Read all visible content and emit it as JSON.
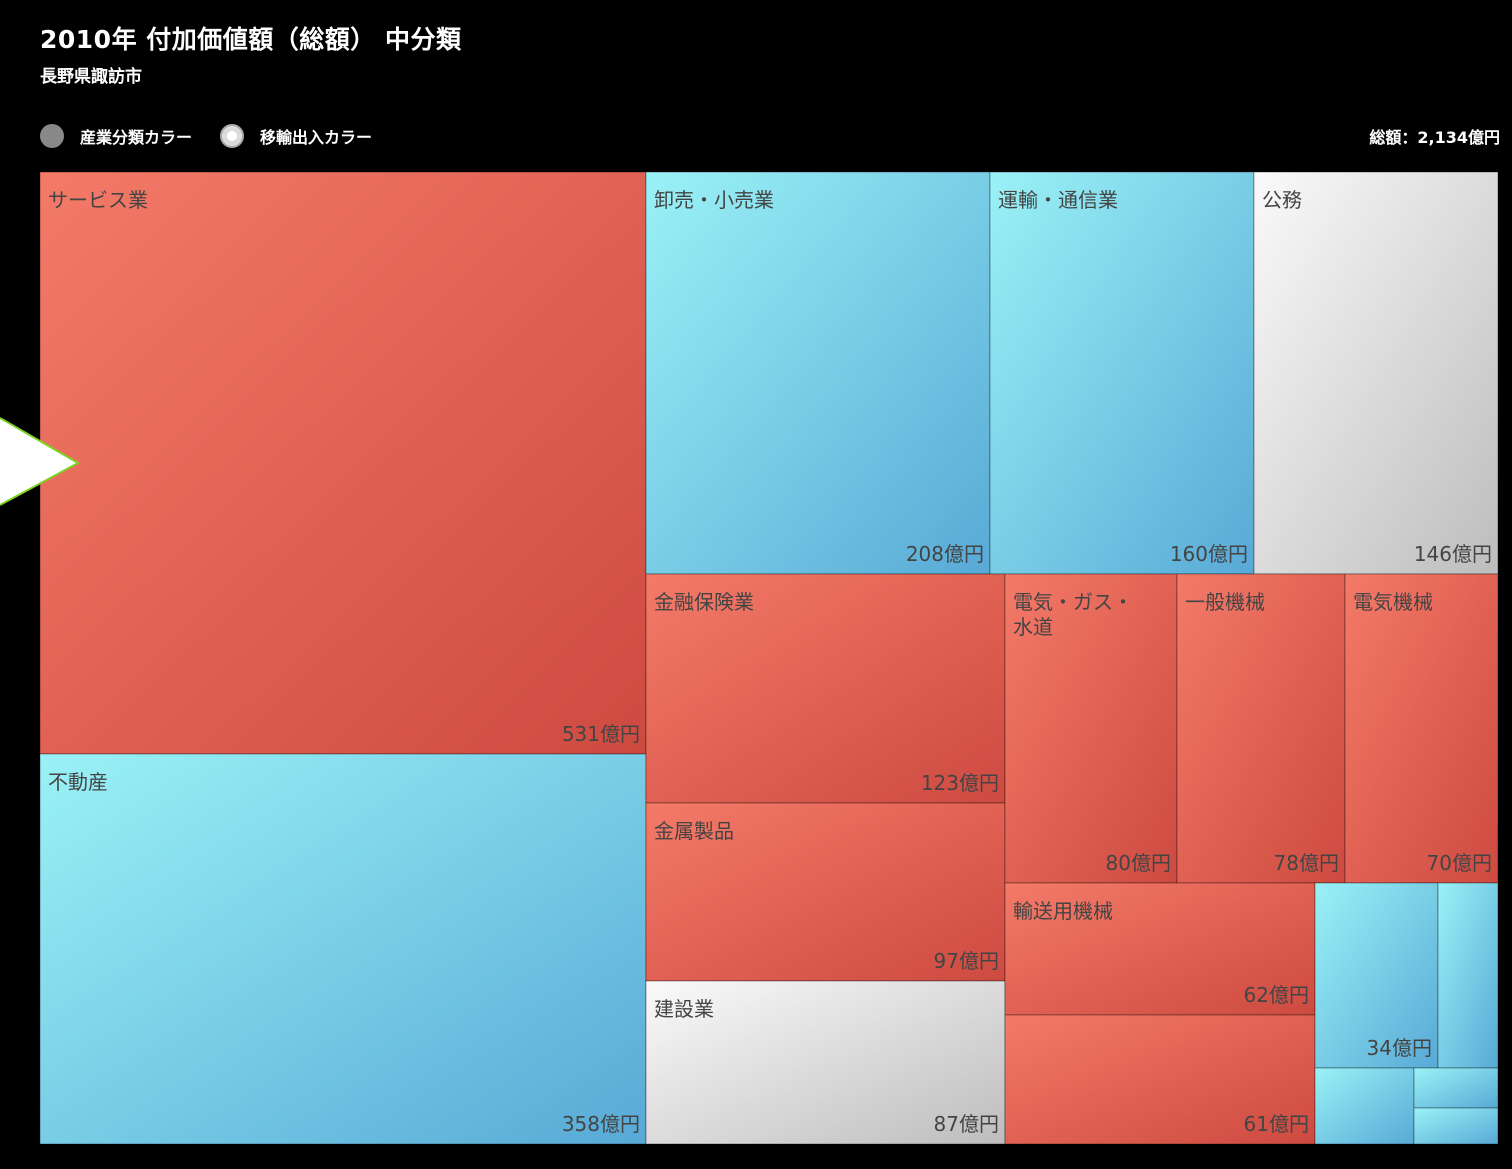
{
  "header": {
    "title": "2010年 付加価値額（総額） 中分類",
    "subtitle": "長野県諏訪市",
    "total": "総額：2,134億円"
  },
  "legend": {
    "options": [
      {
        "label": "産業分類カラー",
        "selected": false
      },
      {
        "label": "移輸出入カラー",
        "selected": true
      }
    ]
  },
  "colors": {
    "red": [
      "#f47a68",
      "#cd4a40"
    ],
    "blue": [
      "#9af2f6",
      "#58a9d6"
    ],
    "gray": [
      "#fafafa",
      "#bdbdbd"
    ],
    "callout": "#7ed321"
  },
  "chart_data": {
    "type": "treemap",
    "title": "2010年 付加価値額（総額） 中分類",
    "unit": "億円",
    "total": 2134,
    "items": [
      {
        "name": "サービス業",
        "value": 531,
        "value_label": "531億円",
        "color": "red"
      },
      {
        "name": "不動産",
        "value": 358,
        "value_label": "358億円",
        "color": "blue"
      },
      {
        "name": "卸売・小売業",
        "value": 208,
        "value_label": "208億円",
        "color": "blue"
      },
      {
        "name": "運輸・通信業",
        "value": 160,
        "value_label": "160億円",
        "color": "blue"
      },
      {
        "name": "公務",
        "value": 146,
        "value_label": "146億円",
        "color": "gray"
      },
      {
        "name": "金融保険業",
        "value": 123,
        "value_label": "123億円",
        "color": "red"
      },
      {
        "name": "金属製品",
        "value": 97,
        "value_label": "97億円",
        "color": "red"
      },
      {
        "name": "建設業",
        "value": 87,
        "value_label": "87億円",
        "color": "gray"
      },
      {
        "name": "電気・ガス・水道",
        "value": 80,
        "value_label": "80億円",
        "color": "red"
      },
      {
        "name": "一般機械",
        "value": 78,
        "value_label": "78億円",
        "color": "red"
      },
      {
        "name": "電気機械",
        "value": 70,
        "value_label": "70億円",
        "color": "red"
      },
      {
        "name": "輸送用機械",
        "value": 62,
        "value_label": "62億円",
        "color": "red"
      },
      {
        "name": "",
        "value": 61,
        "value_label": "61億円",
        "color": "red"
      },
      {
        "name": "",
        "value": 34,
        "value_label": "34億円",
        "color": "blue"
      },
      {
        "name": "",
        "value": 14,
        "value_label": "",
        "color": "blue"
      },
      {
        "name": "",
        "value": 9,
        "value_label": "",
        "color": "blue"
      },
      {
        "name": "",
        "value": 6,
        "value_label": "",
        "color": "blue"
      },
      {
        "name": "",
        "value": 5,
        "value_label": "",
        "color": "blue"
      }
    ]
  }
}
